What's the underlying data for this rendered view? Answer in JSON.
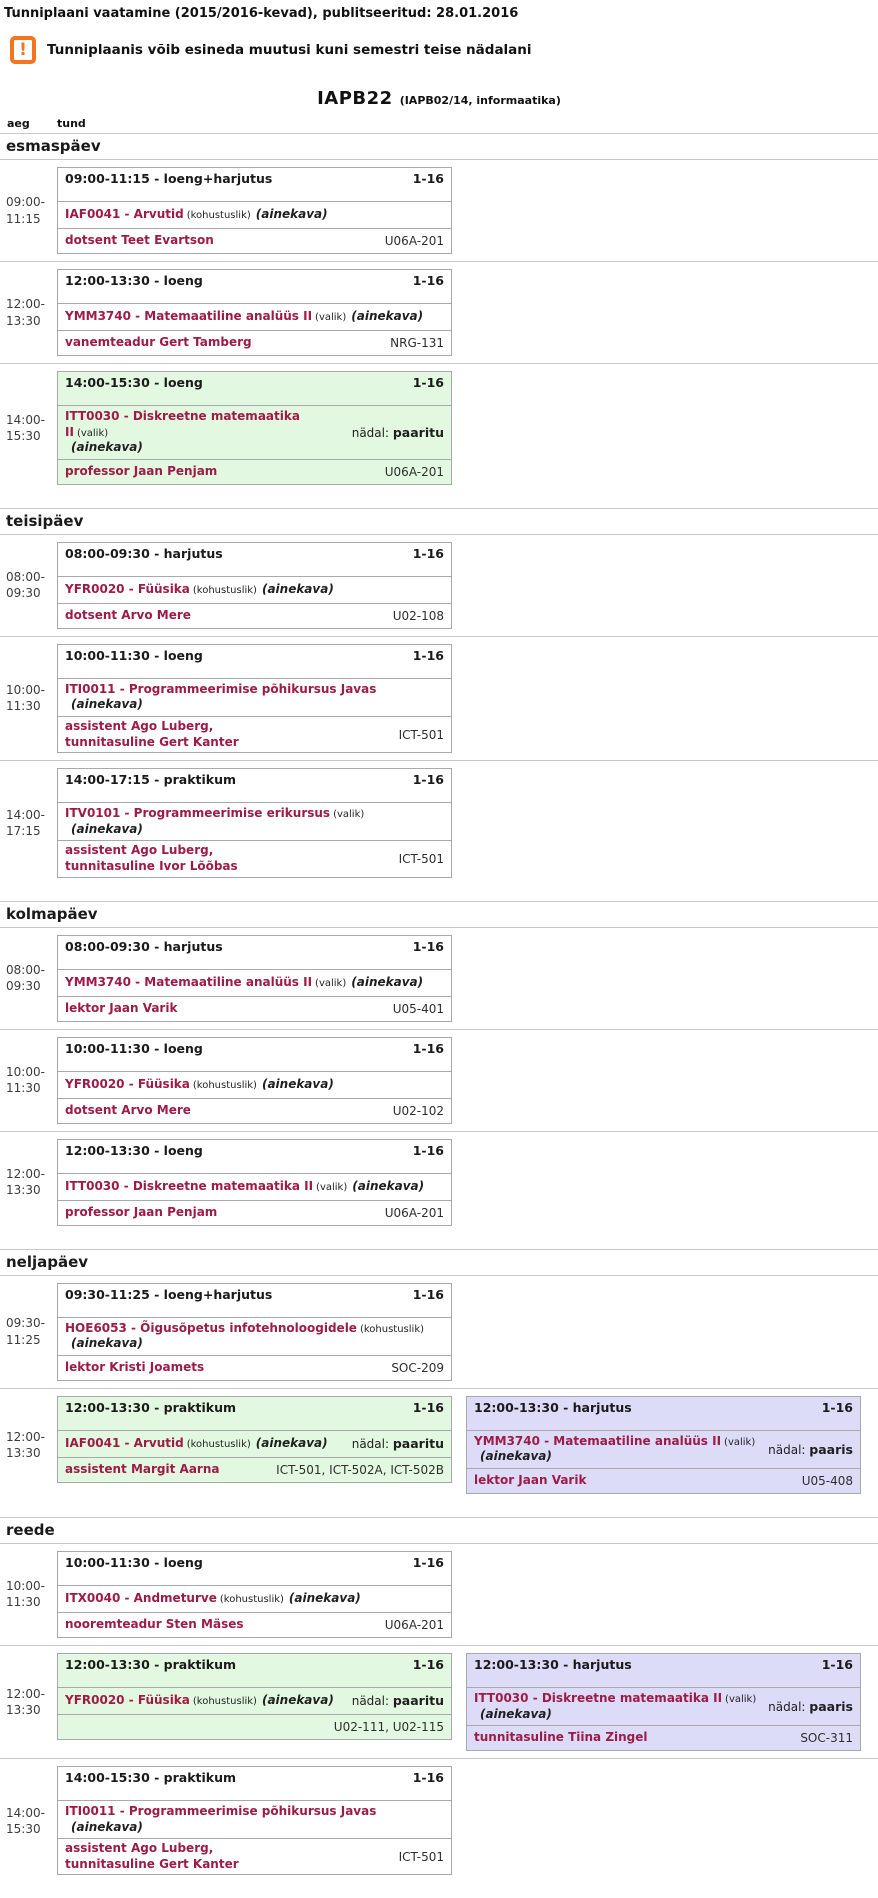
{
  "header": {
    "title": "Tunniplaani vaatamine (2015/2016-kevad), publitseeritud: 28.01.2016",
    "warning": "Tunniplaanis võib esineda muutusi kuni semestri teise nädalani",
    "warning_icon_glyph": "!",
    "group": "IAPB22",
    "group_info": "(IAPB02/14, informaatika)",
    "col_time": "aeg",
    "col_lesson": "tund"
  },
  "labels": {
    "week_parity": "nädal:"
  },
  "colors": {
    "accent_maroon": "#9d1c47",
    "odd_week_bg": "#e3f8e0",
    "even_week_bg": "#dcdcf8",
    "warning_orange": "#f4741f",
    "separator_gray": "#c9c9c9",
    "card_border": "#a9a9a9"
  },
  "days": [
    {
      "name": "esmaspäev",
      "rows": [
        {
          "time_lines": [
            "09:00-",
            "11:15"
          ],
          "entries": [
            {
              "variant": "white",
              "time_range": "09:00-11:15",
              "lesson_type": "loeng+harjutus",
              "weeks": "1-16",
              "course": "IAF0041 - Arvutid",
              "requirement": "(kohustuslik)",
              "ainekava": "(ainekava)",
              "ainekava_own_line": false,
              "week_parity": null,
              "teachers": [
                "dotsent Teet Evartson"
              ],
              "rooms": "U06A-201"
            }
          ]
        },
        {
          "time_lines": [
            "12:00-",
            "13:30"
          ],
          "entries": [
            {
              "variant": "white",
              "time_range": "12:00-13:30",
              "lesson_type": "loeng",
              "weeks": "1-16",
              "course": "YMM3740 - Matemaatiline analüüs II",
              "requirement": "(valik)",
              "ainekava": "(ainekava)",
              "ainekava_own_line": false,
              "week_parity": null,
              "teachers": [
                "vanemteadur Gert Tamberg"
              ],
              "rooms": "NRG-131"
            }
          ]
        },
        {
          "time_lines": [
            "14:00-",
            "15:30"
          ],
          "entries": [
            {
              "variant": "green",
              "time_range": "14:00-15:30",
              "lesson_type": "loeng",
              "weeks": "1-16",
              "course": "ITT0030 - Diskreetne matemaatika II",
              "requirement": "(valik)",
              "ainekava": "(ainekava)",
              "ainekava_own_line": true,
              "week_parity": "paaritu",
              "teachers": [
                "professor Jaan Penjam"
              ],
              "rooms": "U06A-201"
            }
          ]
        }
      ]
    },
    {
      "name": "teisipäev",
      "rows": [
        {
          "time_lines": [
            "08:00-",
            "09:30"
          ],
          "entries": [
            {
              "variant": "white",
              "time_range": "08:00-09:30",
              "lesson_type": "harjutus",
              "weeks": "1-16",
              "course": "YFR0020 - Füüsika",
              "requirement": "(kohustuslik)",
              "ainekava": "(ainekava)",
              "ainekava_own_line": false,
              "week_parity": null,
              "teachers": [
                "dotsent Arvo Mere"
              ],
              "rooms": "U02-108"
            }
          ]
        },
        {
          "time_lines": [
            "10:00-",
            "11:30"
          ],
          "entries": [
            {
              "variant": "white",
              "time_range": "10:00-11:30",
              "lesson_type": "loeng",
              "weeks": "1-16",
              "course": "ITI0011 - Programmeerimise põhikursus Javas",
              "requirement": "",
              "ainekava": "(ainekava)",
              "ainekava_own_line": true,
              "week_parity": null,
              "teachers": [
                "assistent Ago Luberg,",
                "tunnitasuline Gert Kanter"
              ],
              "rooms": "ICT-501"
            }
          ]
        },
        {
          "time_lines": [
            "14:00-",
            "17:15"
          ],
          "entries": [
            {
              "variant": "white",
              "time_range": "14:00-17:15",
              "lesson_type": "praktikum",
              "weeks": "1-16",
              "course": "ITV0101 - Programmeerimise erikursus",
              "requirement": "(valik)",
              "ainekava": "(ainekava)",
              "ainekava_own_line": true,
              "week_parity": null,
              "teachers": [
                "assistent Ago Luberg,",
                "tunnitasuline Ivor Lõõbas"
              ],
              "rooms": "ICT-501"
            }
          ]
        }
      ]
    },
    {
      "name": "kolmapäev",
      "rows": [
        {
          "time_lines": [
            "08:00-",
            "09:30"
          ],
          "entries": [
            {
              "variant": "white",
              "time_range": "08:00-09:30",
              "lesson_type": "harjutus",
              "weeks": "1-16",
              "course": "YMM3740 - Matemaatiline analüüs II",
              "requirement": "(valik)",
              "ainekava": "(ainekava)",
              "ainekava_own_line": false,
              "week_parity": null,
              "teachers": [
                "lektor Jaan Varik"
              ],
              "rooms": "U05-401"
            }
          ]
        },
        {
          "time_lines": [
            "10:00-",
            "11:30"
          ],
          "entries": [
            {
              "variant": "white",
              "time_range": "10:00-11:30",
              "lesson_type": "loeng",
              "weeks": "1-16",
              "course": "YFR0020 - Füüsika",
              "requirement": "(kohustuslik)",
              "ainekava": "(ainekava)",
              "ainekava_own_line": false,
              "week_parity": null,
              "teachers": [
                "dotsent Arvo Mere"
              ],
              "rooms": "U02-102"
            }
          ]
        },
        {
          "time_lines": [
            "12:00-",
            "13:30"
          ],
          "entries": [
            {
              "variant": "white",
              "time_range": "12:00-13:30",
              "lesson_type": "loeng",
              "weeks": "1-16",
              "course": "ITT0030 - Diskreetne matemaatika II",
              "requirement": "(valik)",
              "ainekava": "(ainekava)",
              "ainekava_own_line": false,
              "week_parity": null,
              "teachers": [
                "professor Jaan Penjam"
              ],
              "rooms": "U06A-201"
            }
          ]
        }
      ]
    },
    {
      "name": "neljapäev",
      "rows": [
        {
          "time_lines": [
            "09:30-",
            "11:25"
          ],
          "entries": [
            {
              "variant": "white",
              "time_range": "09:30-11:25",
              "lesson_type": "loeng+harjutus",
              "weeks": "1-16",
              "course": "HOE6053 - Õigusõpetus infotehnoloogidele",
              "requirement": "(kohustuslik)",
              "ainekava": "(ainekava)",
              "ainekava_own_line": true,
              "week_parity": null,
              "teachers": [
                "lektor Kristi Joamets"
              ],
              "rooms": "SOC-209"
            }
          ]
        },
        {
          "time_lines": [
            "12:00-",
            "13:30"
          ],
          "entries": [
            {
              "variant": "green",
              "time_range": "12:00-13:30",
              "lesson_type": "praktikum",
              "weeks": "1-16",
              "course": "IAF0041 - Arvutid",
              "requirement": "(kohustuslik)",
              "ainekava": "(ainekava)",
              "ainekava_own_line": false,
              "week_parity": "paaritu",
              "teachers": [
                "assistent Margit Aarna"
              ],
              "rooms": "ICT-501,  ICT-502A,  ICT-502B"
            },
            {
              "variant": "blue",
              "time_range": "12:00-13:30",
              "lesson_type": "harjutus",
              "weeks": "1-16",
              "course": "YMM3740 - Matemaatiline analüüs II",
              "requirement": "(valik)",
              "ainekava": "(ainekava)",
              "ainekava_own_line": true,
              "week_parity": "paaris",
              "teachers": [
                "lektor Jaan Varik"
              ],
              "rooms": "U05-408"
            }
          ]
        }
      ]
    },
    {
      "name": "reede",
      "rows": [
        {
          "time_lines": [
            "10:00-",
            "11:30"
          ],
          "entries": [
            {
              "variant": "white",
              "time_range": "10:00-11:30",
              "lesson_type": "loeng",
              "weeks": "1-16",
              "course": "ITX0040 - Andmeturve",
              "requirement": "(kohustuslik)",
              "ainekava": "(ainekava)",
              "ainekava_own_line": false,
              "week_parity": null,
              "teachers": [
                "nooremteadur Sten Mäses"
              ],
              "rooms": "U06A-201"
            }
          ]
        },
        {
          "time_lines": [
            "12:00-",
            "13:30"
          ],
          "entries": [
            {
              "variant": "green",
              "time_range": "12:00-13:30",
              "lesson_type": "praktikum",
              "weeks": "1-16",
              "course": "YFR0020 - Füüsika",
              "requirement": "(kohustuslik)",
              "ainekava": "(ainekava)",
              "ainekava_own_line": false,
              "week_parity": "paaritu",
              "teachers": [],
              "rooms": "U02-111,  U02-115"
            },
            {
              "variant": "blue",
              "time_range": "12:00-13:30",
              "lesson_type": "harjutus",
              "weeks": "1-16",
              "course": "ITT0030 - Diskreetne matemaatika II",
              "requirement": "(valik)",
              "ainekava": "(ainekava)",
              "ainekava_own_line": true,
              "week_parity": "paaris",
              "teachers": [
                "tunnitasuline Tiina Zingel"
              ],
              "rooms": "SOC-311"
            }
          ]
        },
        {
          "time_lines": [
            "14:00-",
            "15:30"
          ],
          "entries": [
            {
              "variant": "white",
              "time_range": "14:00-15:30",
              "lesson_type": "praktikum",
              "weeks": "1-16",
              "course": "ITI0011 - Programmeerimise põhikursus Javas",
              "requirement": "",
              "ainekava": "(ainekava)",
              "ainekava_own_line": true,
              "week_parity": null,
              "teachers": [
                "assistent Ago Luberg,",
                "tunnitasuline Gert Kanter"
              ],
              "rooms": "ICT-501"
            }
          ]
        }
      ]
    }
  ]
}
